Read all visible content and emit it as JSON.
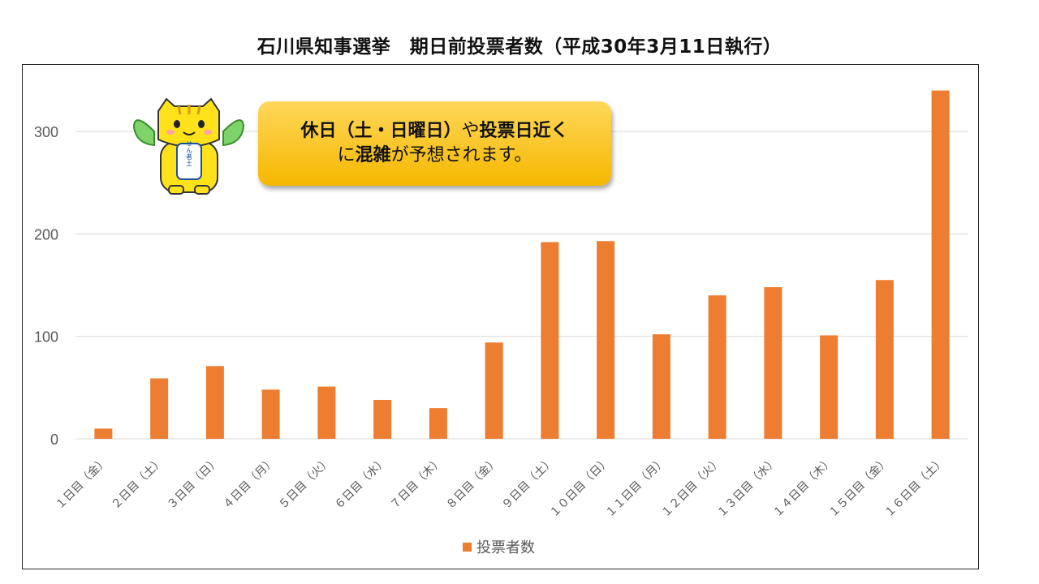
{
  "title": "石川県知事選挙　期日前投票者数（平成30年3月11日執行）",
  "callout": {
    "parts": [
      {
        "text": "休日",
        "bold": true
      },
      {
        "text": "（",
        "bold": true
      },
      {
        "text": "土・日曜日",
        "bold": true
      },
      {
        "text": "）",
        "bold": true
      },
      {
        "text": "や",
        "bold": false
      },
      {
        "text": "投票日近く",
        "bold": true
      },
      {
        "text": "\n",
        "bold": false
      },
      {
        "text": "に",
        "bold": false
      },
      {
        "text": "混雑",
        "bold": true
      },
      {
        "text": "が予想されます。",
        "bold": false
      }
    ]
  },
  "mascot": {
    "badge_text": "せん者土",
    "icon": "cat-mascot-icon"
  },
  "colors": {
    "bar": "#ed7d31",
    "grid": "#d9d9d9",
    "tick": "#595959"
  },
  "chart_data": {
    "type": "bar",
    "categories": [
      "１日目（金）",
      "２日目（土）",
      "３日目（日）",
      "４日目（月）",
      "５日目（火）",
      "６日目（水）",
      "７日目（木）",
      "８日目（金）",
      "９日目（土）",
      "１０日目（日）",
      "１１日目（月）",
      "１２日目（火）",
      "１３日目（水）",
      "１４日目（木）",
      "１５日目（金）",
      "１６日目（土）"
    ],
    "series": [
      {
        "name": "投票者数",
        "values": [
          10,
          59,
          71,
          48,
          51,
          38,
          30,
          94,
          192,
          193,
          102,
          140,
          148,
          101,
          155,
          340
        ]
      }
    ],
    "yticks": [
      0,
      100,
      200,
      300
    ],
    "ylim": [
      0,
      340
    ],
    "grid": true,
    "legend": "bottom"
  }
}
